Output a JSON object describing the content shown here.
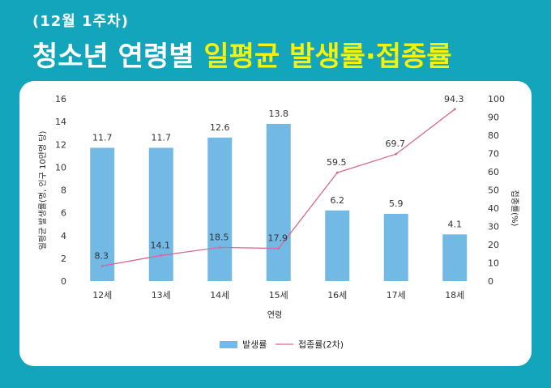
{
  "header": {
    "subtitle": "(12월 1주차)",
    "title_white": "청소년 연령별",
    "title_yellow": "일평균 발생률·접종률"
  },
  "chart_data": {
    "type": "bar",
    "categories": [
      "12세",
      "13세",
      "14세",
      "15세",
      "16세",
      "17세",
      "18세"
    ],
    "series": [
      {
        "name": "발생률",
        "type": "bar",
        "axis": "left",
        "values": [
          11.7,
          11.7,
          12.6,
          13.8,
          6.2,
          5.9,
          4.1
        ]
      },
      {
        "name": "접종률(2차)",
        "type": "line",
        "axis": "right",
        "values": [
          8.3,
          14.1,
          18.5,
          17.9,
          59.5,
          69.7,
          94.3
        ]
      }
    ],
    "xlabel": "연령",
    "ylabel": "일평균 발생률(명, 인구 10만명 당)",
    "y2label": "접종률(%)",
    "ylim": [
      0,
      16
    ],
    "y2lim": [
      0,
      100
    ],
    "yticks": [
      "0",
      "2",
      "4",
      "6",
      "8",
      "10",
      "12",
      "14",
      "16"
    ],
    "y2ticks": [
      "0",
      "10",
      "20",
      "30",
      "40",
      "50",
      "60",
      "70",
      "80",
      "90",
      "100"
    ],
    "grid": false,
    "legend": "bottom",
    "colors": {
      "bar": "#72B9E5",
      "line": "#D86A94"
    }
  }
}
